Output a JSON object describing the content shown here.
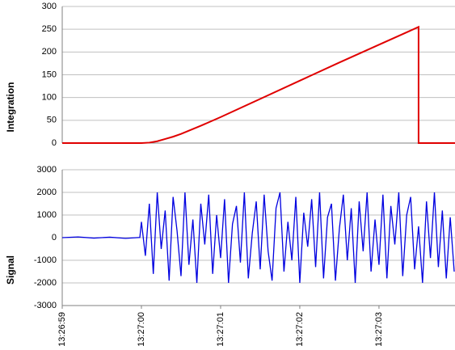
{
  "chart_data": [
    {
      "type": "line",
      "ylabel": "Integration",
      "x": [
        0,
        1.0,
        1.1,
        1.2,
        1.3,
        1.4,
        1.5,
        1.75,
        2.0,
        2.5,
        3.0,
        3.5,
        4.0,
        4.5,
        4.5,
        4.96
      ],
      "series": [
        {
          "name": "Integration",
          "color": "#e00000",
          "values": [
            0,
            0,
            1,
            4,
            9,
            14,
            20,
            38,
            57,
            97,
            137,
            177,
            216,
            255,
            0,
            0
          ]
        }
      ],
      "xlim": [
        0,
        4.96
      ],
      "ylim": [
        0,
        300
      ],
      "yticks": [
        0,
        50,
        100,
        150,
        200,
        250,
        300
      ],
      "grid": true
    },
    {
      "type": "line",
      "ylabel": "Signal",
      "x": [
        0,
        0.2,
        0.4,
        0.6,
        0.8,
        0.98,
        1.0,
        1.05,
        1.1,
        1.15,
        1.2,
        1.25,
        1.3,
        1.35,
        1.4,
        1.45,
        1.5,
        1.55,
        1.6,
        1.65,
        1.7,
        1.75,
        1.8,
        1.85,
        1.9,
        1.95,
        2.0,
        2.05,
        2.1,
        2.15,
        2.2,
        2.25,
        2.3,
        2.35,
        2.4,
        2.45,
        2.5,
        2.55,
        2.6,
        2.65,
        2.7,
        2.75,
        2.8,
        2.85,
        2.9,
        2.95,
        3.0,
        3.05,
        3.1,
        3.15,
        3.2,
        3.25,
        3.3,
        3.35,
        3.4,
        3.45,
        3.5,
        3.55,
        3.6,
        3.65,
        3.7,
        3.75,
        3.8,
        3.85,
        3.9,
        3.95,
        4.0,
        4.05,
        4.1,
        4.15,
        4.2,
        4.25,
        4.3,
        4.35,
        4.4,
        4.45,
        4.5,
        4.55,
        4.6,
        4.65,
        4.7,
        4.75,
        4.8,
        4.85,
        4.9,
        4.95
      ],
      "series": [
        {
          "name": "Signal",
          "color": "#0000e0",
          "values": [
            0,
            30,
            -20,
            20,
            -30,
            10,
            700,
            -800,
            1500,
            -1600,
            2000,
            -500,
            1200,
            -1900,
            1800,
            300,
            -1700,
            2000,
            -1200,
            800,
            -2000,
            1500,
            -300,
            1900,
            -1600,
            1000,
            -900,
            1700,
            -2000,
            600,
            1400,
            -1100,
            2000,
            -1800,
            200,
            1600,
            -1400,
            1900,
            -600,
            -1900,
            1300,
            2000,
            -1500,
            700,
            -1000,
            1800,
            -2000,
            1100,
            -400,
            1700,
            -1300,
            2000,
            -1800,
            900,
            1500,
            -1900,
            400,
            1900,
            -1000,
            1300,
            -2000,
            1600,
            -600,
            2000,
            -1500,
            800,
            -1200,
            1900,
            -1800,
            1400,
            -300,
            2000,
            -1700,
            1000,
            1800,
            -1400,
            500,
            -2000,
            1600,
            -900,
            2000,
            -1300,
            1200,
            -1800,
            900,
            -1500
          ]
        }
      ],
      "xlim": [
        0,
        4.96
      ],
      "ylim": [
        -3000,
        3000
      ],
      "yticks": [
        -3000,
        -2000,
        -1000,
        0,
        1000,
        2000,
        3000
      ],
      "grid": true,
      "xticks": [
        {
          "value": 0,
          "label": "13:26:59"
        },
        {
          "value": 1,
          "label": "13:27:00"
        },
        {
          "value": 2,
          "label": "13:27:01"
        },
        {
          "value": 3,
          "label": "13:27:02"
        },
        {
          "value": 4,
          "label": "13:27:03"
        }
      ]
    }
  ]
}
